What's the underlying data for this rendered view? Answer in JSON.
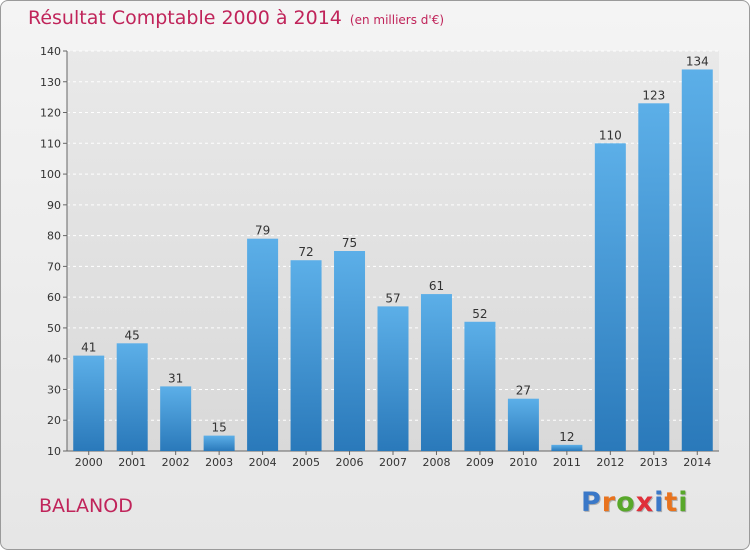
{
  "title": "Résultat Comptable 2000 à 2014",
  "subtitle": "(en milliers d'€)",
  "place": "BALANOD",
  "logo": {
    "letters": [
      "P",
      "r",
      "o",
      "x",
      "i",
      "t",
      "i"
    ]
  },
  "colors": {
    "title": "#c0245a",
    "bar_top": "#5cafe8",
    "bar_bottom": "#2a79ba",
    "logo": [
      "#3a78c8",
      "#e8731e",
      "#58a82a",
      "#e0303a",
      "#3a78c8",
      "#e8731e",
      "#58a82a"
    ]
  },
  "chart_data": {
    "type": "bar",
    "categories": [
      "2000",
      "2001",
      "2002",
      "2003",
      "2004",
      "2005",
      "2006",
      "2007",
      "2008",
      "2009",
      "2010",
      "2011",
      "2012",
      "2013",
      "2014"
    ],
    "values": [
      41,
      45,
      31,
      15,
      79,
      72,
      75,
      57,
      61,
      52,
      27,
      12,
      110,
      123,
      134
    ],
    "ylim": [
      10,
      140
    ],
    "yticks": [
      10,
      20,
      30,
      40,
      50,
      60,
      70,
      80,
      90,
      100,
      110,
      120,
      130,
      140
    ],
    "grid": true,
    "data_labels": true
  }
}
